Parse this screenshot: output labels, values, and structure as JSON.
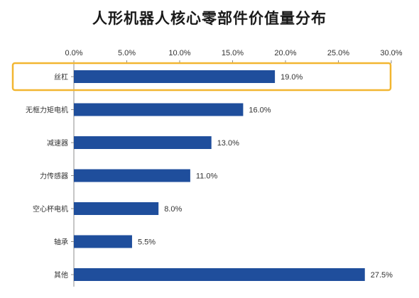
{
  "chart_data": {
    "type": "bar",
    "orientation": "horizontal",
    "title": "人形机器人核心零部件价值量分布",
    "categories": [
      "丝杠",
      "无框力矩电机",
      "减速器",
      "力传感器",
      "空心杯电机",
      "轴承",
      "其他"
    ],
    "values": [
      19.0,
      16.0,
      13.0,
      11.0,
      8.0,
      5.5,
      27.5
    ],
    "value_labels": [
      "19.0%",
      "16.0%",
      "13.0%",
      "11.0%",
      "8.0%",
      "5.5%",
      "27.5%"
    ],
    "xlim": [
      0,
      30
    ],
    "x_ticks": [
      0,
      5,
      10,
      15,
      20,
      25,
      30
    ],
    "x_tick_labels": [
      "0.0%",
      "5.0%",
      "10.0%",
      "15.0%",
      "20.0%",
      "25.0%",
      "30.0%"
    ],
    "x_axis_position": "top",
    "grid": false,
    "highlighted_category": "丝杠",
    "bar_color": "#1f4e9c",
    "highlight_color": "#f2b631"
  }
}
